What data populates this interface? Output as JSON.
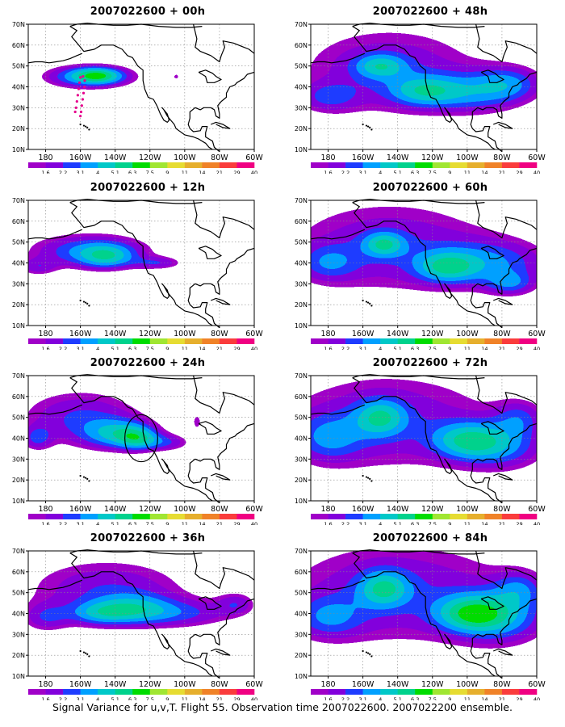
{
  "caption": "Signal Variance for u,v,T. Flight 55. Observation time 2007022600. 2007022200 ensemble.",
  "axes": {
    "x_ticks": [
      "180",
      "160W",
      "140W",
      "120W",
      "100W",
      "80W",
      "60W"
    ],
    "y_ticks": [
      "10N",
      "20N",
      "30N",
      "40N",
      "50N",
      "60N",
      "70N"
    ],
    "lon_range": [
      -190,
      -60
    ],
    "lat_range": [
      10,
      70
    ],
    "grid": "dotted"
  },
  "colorbar": {
    "levels": [
      "1.6",
      "2.2",
      "3.1",
      "4",
      "5.1",
      "6.3",
      "7.5",
      "9",
      "11",
      "14",
      "21",
      "29",
      "40"
    ],
    "colors": [
      "#a000c8",
      "#8200dc",
      "#1e3cff",
      "#00a0ff",
      "#00c8c8",
      "#00d28c",
      "#00dc00",
      "#a0e632",
      "#e6dc32",
      "#e6af2d",
      "#f08228",
      "#fa3c3c",
      "#f00082"
    ]
  },
  "panels": [
    {
      "title": "2007022600 + 00h",
      "valid": 0,
      "column": 0,
      "row": 0
    },
    {
      "title": "2007022600 + 12h",
      "valid": 12,
      "column": 0,
      "row": 1
    },
    {
      "title": "2007022600 + 24h",
      "valid": 24,
      "column": 0,
      "row": 2
    },
    {
      "title": "2007022600 + 36h",
      "valid": 36,
      "column": 0,
      "row": 3
    },
    {
      "title": "2007022600 + 48h",
      "valid": 48,
      "column": 1,
      "row": 0
    },
    {
      "title": "2007022600 + 60h",
      "valid": 60,
      "column": 1,
      "row": 1
    },
    {
      "title": "2007022600 + 72h",
      "valid": 72,
      "column": 1,
      "row": 2
    },
    {
      "title": "2007022600 + 84h",
      "valid": 84,
      "column": 1,
      "row": 3
    }
  ],
  "flight_track_points": [
    [
      -163,
      28
    ],
    [
      -162.5,
      30
    ],
    [
      -162,
      33
    ],
    [
      -161.5,
      36
    ],
    [
      -161,
      39
    ],
    [
      -160.5,
      42
    ],
    [
      -160,
      44.5
    ],
    [
      -158.5,
      45
    ],
    [
      -157.5,
      43
    ],
    [
      -157.7,
      40
    ],
    [
      -158.2,
      37
    ],
    [
      -158.7,
      34
    ],
    [
      -159.2,
      31
    ],
    [
      -159.6,
      28
    ],
    [
      -160,
      26
    ]
  ],
  "target_circle": {
    "lon": -125,
    "lat": 40,
    "radius_deg": 9
  },
  "chart_data": {
    "type": "heatmap",
    "variable": "Signal Variance for u,v,T",
    "x_axis": "longitude",
    "y_axis": "latitude",
    "x_ticks": [
      "180",
      "160W",
      "140W",
      "120W",
      "100W",
      "80W",
      "60W"
    ],
    "y_ticks": [
      "10N",
      "20N",
      "30N",
      "40N",
      "50N",
      "60N",
      "70N"
    ],
    "contour_levels": [
      1.6,
      2.2,
      3.1,
      4,
      5.1,
      6.3,
      7.5,
      9,
      11,
      14,
      21,
      29,
      40
    ],
    "panels": [
      {
        "lead_hours": 0,
        "blobs": [
          {
            "lon": -155,
            "lat": 45,
            "sx": 18,
            "sy": 4,
            "peak": 5.0
          },
          {
            "lon": -150,
            "lat": 45.5,
            "sx": 9,
            "sy": 2.5,
            "peak": 3.6
          },
          {
            "lon": -105,
            "lat": 45,
            "sx": 1.5,
            "sy": 1.2,
            "peak": 1.9
          }
        ]
      },
      {
        "lead_hours": 12,
        "blobs": [
          {
            "lon": -155,
            "lat": 46,
            "sx": 25,
            "sy": 6,
            "peak": 4.0
          },
          {
            "lon": -145,
            "lat": 43,
            "sx": 11,
            "sy": 4,
            "peak": 3.5
          },
          {
            "lon": -185,
            "lat": 38,
            "sx": 8,
            "sy": 3,
            "peak": 2.2
          },
          {
            "lon": -115,
            "lat": 40,
            "sx": 10,
            "sy": 2.2,
            "peak": 2.4
          }
        ]
      },
      {
        "lead_hours": 24,
        "blobs": [
          {
            "lon": -160,
            "lat": 50,
            "sx": 26,
            "sy": 10,
            "peak": 3.2
          },
          {
            "lon": -138,
            "lat": 42,
            "sx": 14,
            "sy": 5,
            "peak": 4.0
          },
          {
            "lon": -127,
            "lat": 40,
            "sx": 8,
            "sy": 4,
            "peak": 3.5
          },
          {
            "lon": -110,
            "lat": 38,
            "sx": 10,
            "sy": 3,
            "peak": 2.5
          },
          {
            "lon": -185,
            "lat": 40,
            "sx": 6,
            "sy": 4,
            "peak": 2.5
          },
          {
            "lon": -93,
            "lat": 48,
            "sx": 2,
            "sy": 3,
            "peak": 2.0
          }
        ]
      },
      {
        "lead_hours": 36,
        "blobs": [
          {
            "lon": -145,
            "lat": 52,
            "sx": 35,
            "sy": 11,
            "peak": 3.0
          },
          {
            "lon": -130,
            "lat": 42,
            "sx": 15,
            "sy": 5,
            "peak": 3.5
          },
          {
            "lon": -150,
            "lat": 40,
            "sx": 12,
            "sy": 4,
            "peak": 3.0
          },
          {
            "lon": -100,
            "lat": 40,
            "sx": 22,
            "sy": 5,
            "peak": 2.6
          },
          {
            "lon": -180,
            "lat": 38,
            "sx": 10,
            "sy": 5,
            "peak": 2.4
          },
          {
            "lon": -70,
            "lat": 45,
            "sx": 8,
            "sy": 4,
            "peak": 2.2
          }
        ]
      },
      {
        "lead_hours": 48,
        "blobs": [
          {
            "lon": -145,
            "lat": 48,
            "sx": 40,
            "sy": 16,
            "peak": 3.0
          },
          {
            "lon": -150,
            "lat": 50,
            "sx": 10,
            "sy": 4,
            "peak": 3.5
          },
          {
            "lon": -125,
            "lat": 38,
            "sx": 14,
            "sy": 5,
            "peak": 3.6
          },
          {
            "lon": -95,
            "lat": 37,
            "sx": 20,
            "sy": 7,
            "peak": 3.0
          },
          {
            "lon": -75,
            "lat": 42,
            "sx": 14,
            "sy": 6,
            "peak": 2.8
          },
          {
            "lon": -180,
            "lat": 35,
            "sx": 12,
            "sy": 5,
            "peak": 2.3
          }
        ]
      },
      {
        "lead_hours": 60,
        "blobs": [
          {
            "lon": -145,
            "lat": 48,
            "sx": 45,
            "sy": 17,
            "peak": 3.0
          },
          {
            "lon": -148,
            "lat": 49,
            "sx": 8,
            "sy": 4,
            "peak": 3.9
          },
          {
            "lon": -112,
            "lat": 38,
            "sx": 12,
            "sy": 5,
            "peak": 3.8
          },
          {
            "lon": -85,
            "lat": 40,
            "sx": 24,
            "sy": 8,
            "peak": 3.2
          },
          {
            "lon": -75,
            "lat": 30,
            "sx": 10,
            "sy": 4,
            "peak": 2.6
          },
          {
            "lon": -180,
            "lat": 40,
            "sx": 12,
            "sy": 6,
            "peak": 2.4
          }
        ]
      },
      {
        "lead_hours": 72,
        "blobs": [
          {
            "lon": -145,
            "lat": 48,
            "sx": 48,
            "sy": 18,
            "peak": 3.0
          },
          {
            "lon": -150,
            "lat": 50,
            "sx": 10,
            "sy": 6,
            "peak": 3.9
          },
          {
            "lon": -100,
            "lat": 39,
            "sx": 14,
            "sy": 6,
            "peak": 4.0
          },
          {
            "lon": -80,
            "lat": 36,
            "sx": 18,
            "sy": 8,
            "peak": 3.2
          },
          {
            "lon": -180,
            "lat": 40,
            "sx": 14,
            "sy": 8,
            "peak": 2.6
          },
          {
            "lon": -70,
            "lat": 50,
            "sx": 10,
            "sy": 6,
            "peak": 2.4
          }
        ]
      },
      {
        "lead_hours": 84,
        "blobs": [
          {
            "lon": -140,
            "lat": 50,
            "sx": 52,
            "sy": 19,
            "peak": 3.1
          },
          {
            "lon": -148,
            "lat": 52,
            "sx": 10,
            "sy": 6,
            "peak": 4.0
          },
          {
            "lon": -98,
            "lat": 40,
            "sx": 14,
            "sy": 6,
            "peak": 4.7
          },
          {
            "lon": -80,
            "lat": 38,
            "sx": 18,
            "sy": 9,
            "peak": 3.4
          },
          {
            "lon": -180,
            "lat": 38,
            "sx": 14,
            "sy": 7,
            "peak": 2.6
          },
          {
            "lon": -70,
            "lat": 52,
            "sx": 10,
            "sy": 6,
            "peak": 2.5
          }
        ]
      }
    ]
  }
}
